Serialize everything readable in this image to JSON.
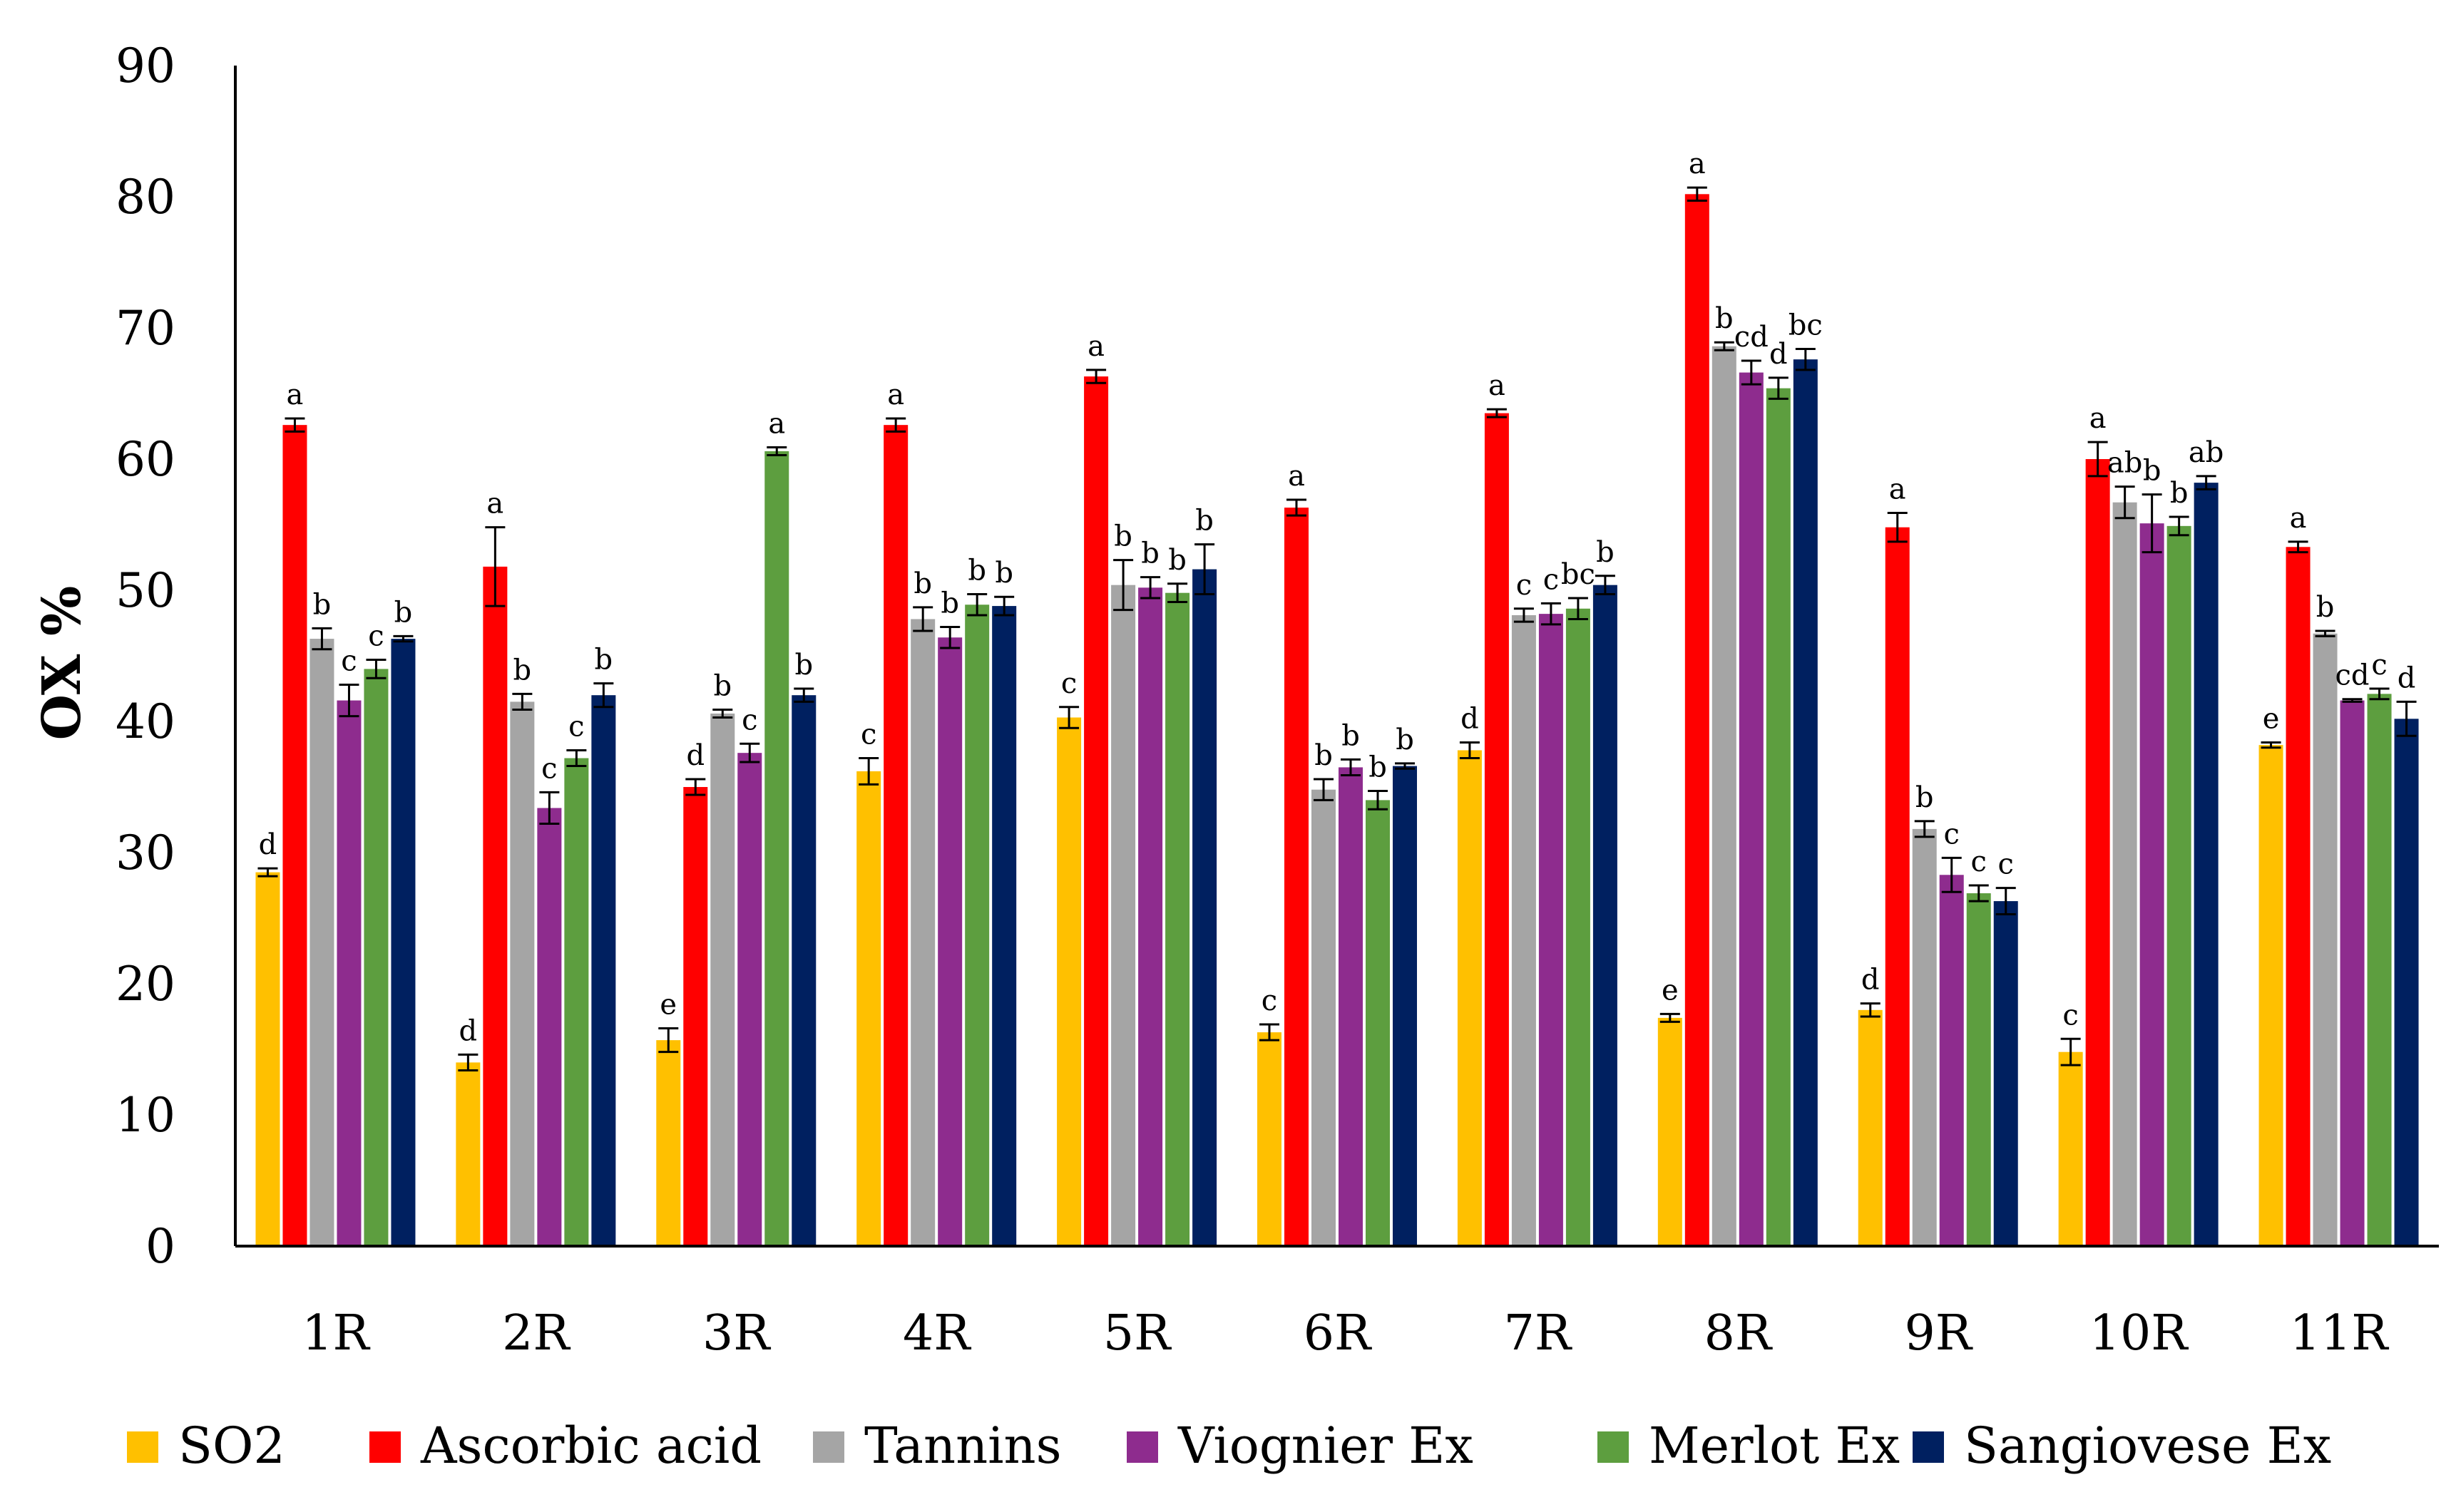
{
  "chart_data": {
    "type": "bar",
    "title": "",
    "xlabel": "",
    "ylabel": "OX %",
    "ylim": [
      0,
      90
    ],
    "yticks": [
      0,
      10,
      20,
      30,
      40,
      50,
      60,
      70,
      80,
      90
    ],
    "grid": false,
    "legend_position": "bottom",
    "categories": [
      "1R",
      "2R",
      "3R",
      "4R",
      "5R",
      "6R",
      "7R",
      "8R",
      "9R",
      "10R",
      "11R"
    ],
    "series": [
      {
        "name": "SO2",
        "color": "#FFC000",
        "values": [
          28.5,
          14.0,
          15.7,
          36.2,
          40.3,
          16.3,
          37.8,
          17.4,
          18.0,
          14.8,
          38.2
        ],
        "errors": [
          0.3,
          0.6,
          0.9,
          1.0,
          0.8,
          0.6,
          0.6,
          0.3,
          0.5,
          1.0,
          0.2
        ],
        "letters": [
          "d",
          "d",
          "e",
          "c",
          "c",
          "c",
          "d",
          "e",
          "d",
          "c",
          "e"
        ]
      },
      {
        "name": "Ascorbic acid",
        "color": "#FF0000",
        "values": [
          62.6,
          51.8,
          35.0,
          62.6,
          66.3,
          56.3,
          63.5,
          80.2,
          54.8,
          60.0,
          53.3
        ],
        "errors": [
          0.5,
          3.0,
          0.6,
          0.5,
          0.5,
          0.6,
          0.3,
          0.5,
          1.1,
          1.3,
          0.4
        ],
        "letters": [
          "a",
          "a",
          "d",
          "a",
          "a",
          "a",
          "a",
          "a",
          "a",
          "a",
          "a"
        ]
      },
      {
        "name": "Tannins",
        "color": "#A5A5A5",
        "values": [
          46.3,
          41.5,
          40.6,
          47.8,
          50.4,
          34.8,
          48.1,
          68.6,
          31.8,
          56.7,
          46.7
        ],
        "errors": [
          0.8,
          0.6,
          0.3,
          0.9,
          1.9,
          0.8,
          0.5,
          0.3,
          0.6,
          1.2,
          0.2
        ],
        "letters": [
          "b",
          "b",
          "b",
          "b",
          "b",
          "b",
          "c",
          "b",
          "b",
          "ab",
          "b"
        ]
      },
      {
        "name": "Viognier Ex",
        "color": "#8E2C8E",
        "values": [
          41.6,
          33.4,
          37.6,
          46.4,
          50.2,
          36.5,
          48.2,
          66.6,
          28.3,
          55.1,
          41.6
        ],
        "errors": [
          1.2,
          1.2,
          0.7,
          0.8,
          0.8,
          0.6,
          0.8,
          0.9,
          1.3,
          2.2,
          0.1
        ],
        "letters": [
          "c",
          "c",
          "c",
          "b",
          "b",
          "b",
          "c",
          "cd",
          "c",
          "b",
          "cd"
        ]
      },
      {
        "name": "Merlot Ex",
        "color": "#5D9E3F",
        "values": [
          44.0,
          37.2,
          60.6,
          48.9,
          49.8,
          34.0,
          48.6,
          65.4,
          26.9,
          54.9,
          42.1
        ],
        "errors": [
          0.7,
          0.6,
          0.3,
          0.8,
          0.7,
          0.7,
          0.8,
          0.8,
          0.6,
          0.7,
          0.4
        ],
        "letters": [
          "c",
          "c",
          "a",
          "b",
          "b",
          "b",
          "bc",
          "d",
          "c",
          "b",
          "c"
        ]
      },
      {
        "name": "Sangiovese Ex",
        "color": "#002060",
        "values": [
          46.3,
          42.0,
          42.0,
          48.8,
          51.6,
          36.6,
          50.4,
          67.6,
          26.3,
          58.2,
          40.2
        ],
        "errors": [
          0.2,
          0.9,
          0.5,
          0.7,
          1.9,
          0.2,
          0.7,
          0.8,
          1.0,
          0.5,
          1.3
        ],
        "letters": [
          "b",
          "b",
          "b",
          "b",
          "b",
          "b",
          "b",
          "bc",
          "c",
          "ab",
          "d"
        ]
      }
    ]
  }
}
